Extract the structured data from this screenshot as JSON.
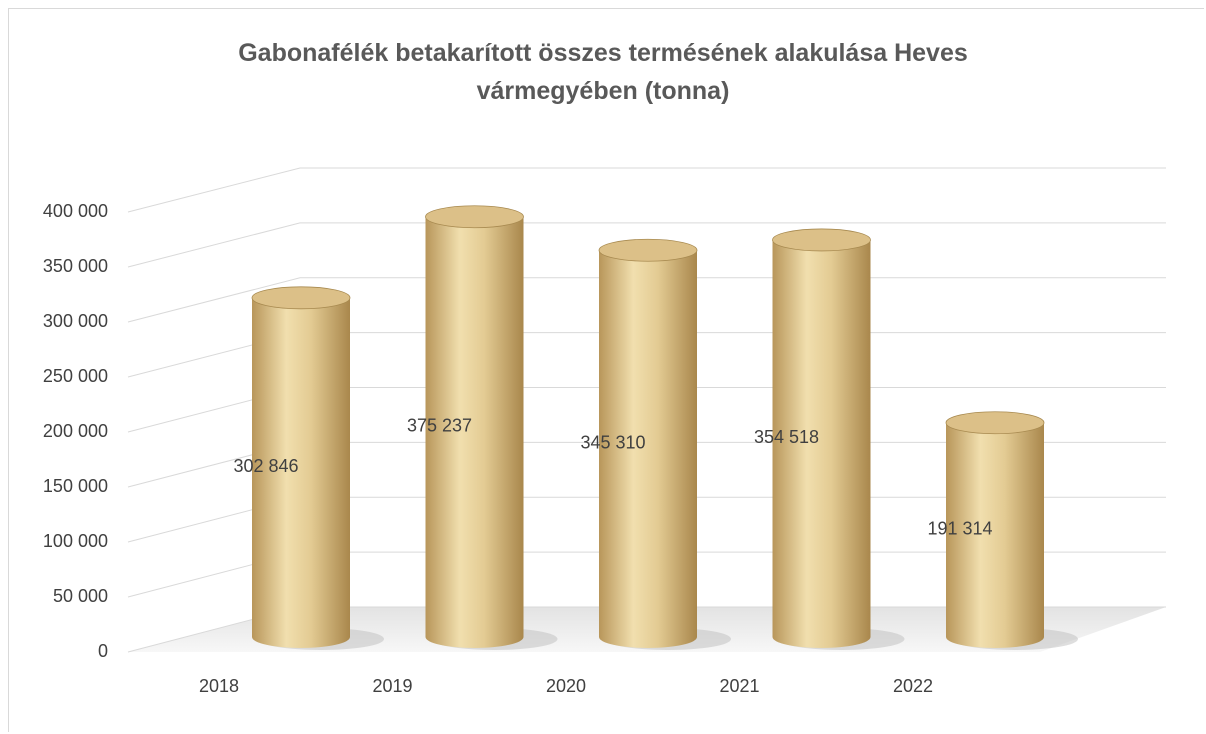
{
  "chart_data": {
    "type": "bar",
    "title": "Gabonafélék betakarított összes termésének alakulása Heves vármegyében (tonna)",
    "categories": [
      "2018",
      "2019",
      "2020",
      "2021",
      "2022"
    ],
    "values": [
      302846,
      375237,
      345310,
      354518,
      191314
    ],
    "value_labels": [
      "302 846",
      "375 237",
      "345 310",
      "354 518",
      "191 314"
    ],
    "color": "#dcc088",
    "ylim": [
      0,
      400000
    ],
    "yticks": [
      0,
      {
        "value": 50000,
        "label": "50 000"
      },
      {
        "value": 100000,
        "label": "100 000"
      },
      {
        "value": 150000,
        "label": "150 000"
      },
      {
        "value": 200000,
        "label": "200 000"
      },
      {
        "value": 250000,
        "label": "250 000"
      },
      {
        "value": 300000,
        "label": "300 000"
      },
      {
        "value": 350000,
        "label": "350 000"
      },
      {
        "value": 400000,
        "label": "400 000"
      }
    ],
    "grid": true
  }
}
